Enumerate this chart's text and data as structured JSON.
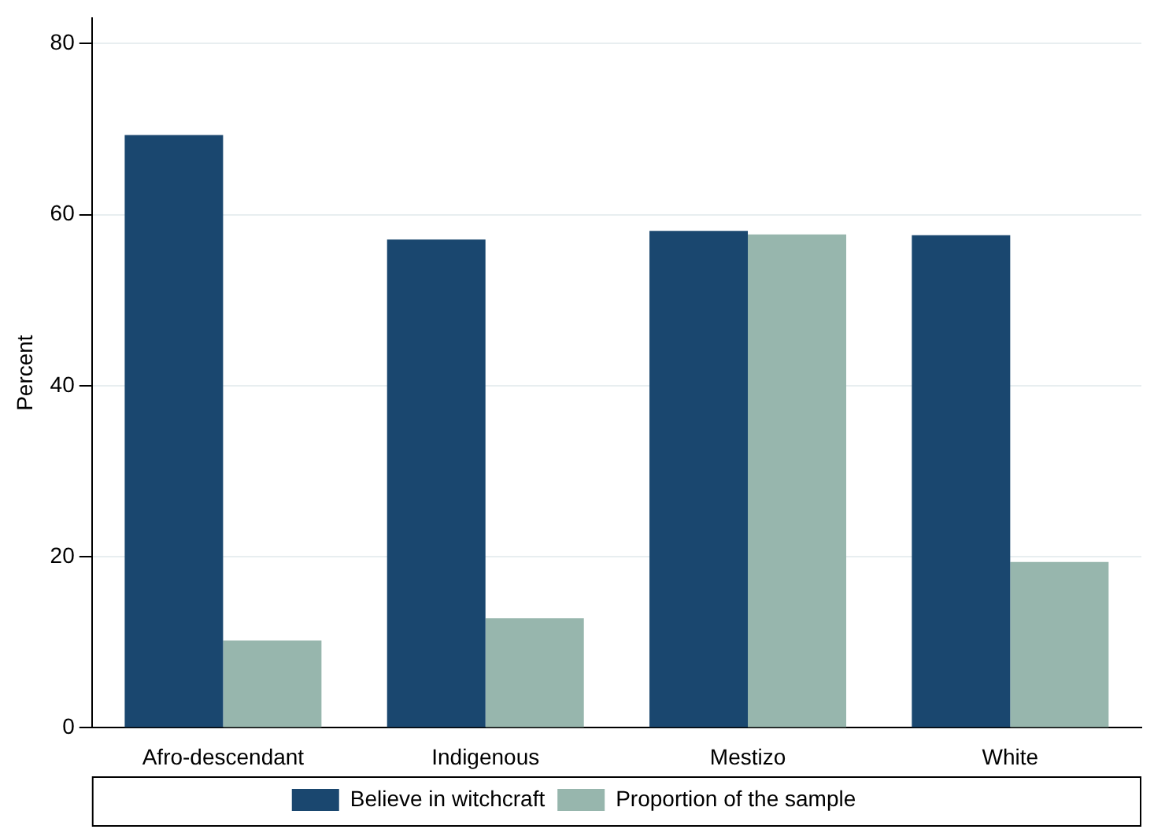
{
  "chart_data": {
    "type": "bar",
    "ylabel": "Percent",
    "categories": [
      "Afro-descendant",
      "Indigenous",
      "Mestizo",
      "White"
    ],
    "series": [
      {
        "name": "Believe in witchcraft",
        "color": "#1a476f",
        "values": [
          69.3,
          57.1,
          58.1,
          57.6
        ]
      },
      {
        "name": "Proportion of the sample",
        "color": "#97b6ad",
        "values": [
          10.2,
          12.8,
          57.7,
          19.4
        ]
      }
    ],
    "ylim": [
      0,
      83
    ],
    "yticks": [
      0,
      20,
      40,
      60,
      80
    ],
    "grid": "y",
    "legend": "bottom"
  }
}
